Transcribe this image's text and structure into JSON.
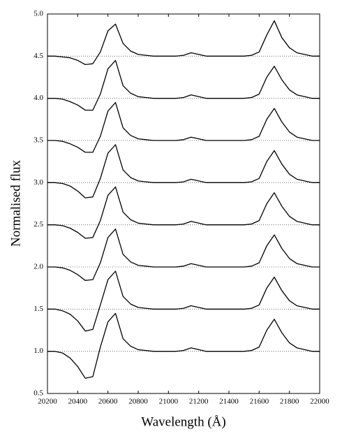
{
  "chart_data": {
    "type": "line",
    "xlabel": "Wavelength (Å)",
    "ylabel": "Normalised flux",
    "x": [
      20200,
      20250,
      20300,
      20350,
      20400,
      20450,
      20500,
      20550,
      20600,
      20650,
      20700,
      20750,
      20800,
      20850,
      20900,
      20950,
      21000,
      21050,
      21100,
      21150,
      21200,
      21250,
      21300,
      21350,
      21400,
      21450,
      21500,
      21550,
      21600,
      21650,
      21700,
      21750,
      21800,
      21850,
      21900,
      21950,
      22000
    ],
    "series": [
      {
        "color": "#000000",
        "values": [
          1,
          1,
          0.98,
          0.92,
          0.82,
          0.68,
          0.7,
          1.05,
          1.35,
          1.45,
          1.15,
          1.06,
          1.02,
          1.01,
          1,
          1,
          1,
          1,
          1.01,
          1.04,
          1.02,
          1,
          1,
          1,
          1,
          1,
          1,
          1.01,
          1.05,
          1.25,
          1.38,
          1.22,
          1.1,
          1.04,
          1.02,
          1,
          1
        ]
      },
      {
        "color": "#000000",
        "values": [
          1.5,
          1.5,
          1.48,
          1.44,
          1.36,
          1.24,
          1.26,
          1.55,
          1.85,
          1.95,
          1.65,
          1.56,
          1.52,
          1.51,
          1.5,
          1.5,
          1.5,
          1.5,
          1.51,
          1.54,
          1.52,
          1.5,
          1.5,
          1.5,
          1.5,
          1.5,
          1.5,
          1.51,
          1.55,
          1.75,
          1.88,
          1.72,
          1.6,
          1.54,
          1.52,
          1.5,
          1.5
        ]
      },
      {
        "color": "#000000",
        "values": [
          2,
          2,
          1.99,
          1.96,
          1.91,
          1.84,
          1.85,
          2.05,
          2.35,
          2.45,
          2.15,
          2.06,
          2.02,
          2.01,
          2,
          2,
          2,
          2,
          2.01,
          2.04,
          2.02,
          2,
          2,
          2,
          2,
          2,
          2,
          2.01,
          2.05,
          2.25,
          2.38,
          2.22,
          2.1,
          2.04,
          2.02,
          2,
          2
        ]
      },
      {
        "color": "#000000",
        "values": [
          2.5,
          2.5,
          2.49,
          2.46,
          2.41,
          2.34,
          2.35,
          2.55,
          2.85,
          2.95,
          2.65,
          2.56,
          2.52,
          2.51,
          2.5,
          2.5,
          2.5,
          2.5,
          2.51,
          2.54,
          2.52,
          2.5,
          2.5,
          2.5,
          2.5,
          2.5,
          2.5,
          2.51,
          2.55,
          2.75,
          2.88,
          2.72,
          2.6,
          2.54,
          2.52,
          2.5,
          2.5
        ]
      },
      {
        "color": "#000000",
        "values": [
          3,
          3,
          2.99,
          2.96,
          2.9,
          2.82,
          2.83,
          3.05,
          3.35,
          3.45,
          3.15,
          3.06,
          3.02,
          3.01,
          3,
          3,
          3,
          3,
          3.01,
          3.04,
          3.02,
          3,
          3,
          3,
          3,
          3,
          3,
          3.01,
          3.05,
          3.25,
          3.38,
          3.22,
          3.1,
          3.04,
          3.02,
          3,
          3
        ]
      },
      {
        "color": "#000000",
        "values": [
          3.5,
          3.5,
          3.49,
          3.46,
          3.42,
          3.36,
          3.36,
          3.55,
          3.85,
          3.95,
          3.65,
          3.56,
          3.52,
          3.51,
          3.5,
          3.5,
          3.5,
          3.5,
          3.51,
          3.54,
          3.52,
          3.5,
          3.5,
          3.5,
          3.5,
          3.5,
          3.5,
          3.51,
          3.55,
          3.75,
          3.88,
          3.72,
          3.6,
          3.54,
          3.52,
          3.5,
          3.5
        ]
      },
      {
        "color": "#000000",
        "values": [
          4,
          4,
          3.99,
          3.96,
          3.92,
          3.86,
          3.86,
          4.05,
          4.35,
          4.45,
          4.15,
          4.06,
          4.02,
          4.01,
          4,
          4,
          4,
          4,
          4.01,
          4.04,
          4.02,
          4,
          4,
          4,
          4,
          4,
          4,
          4.01,
          4.05,
          4.25,
          4.38,
          4.22,
          4.1,
          4.04,
          4.02,
          4,
          4
        ]
      },
      {
        "color": "#000000",
        "values": [
          4.5,
          4.5,
          4.49,
          4.48,
          4.45,
          4.4,
          4.41,
          4.55,
          4.8,
          4.88,
          4.65,
          4.56,
          4.52,
          4.51,
          4.5,
          4.5,
          4.5,
          4.5,
          4.51,
          4.54,
          4.52,
          4.5,
          4.5,
          4.5,
          4.5,
          4.5,
          4.5,
          4.51,
          4.55,
          4.75,
          4.92,
          4.72,
          4.6,
          4.54,
          4.52,
          4.5,
          4.5
        ]
      }
    ],
    "hlines": [
      1,
      1.5,
      2,
      2.5,
      3,
      3.5,
      4,
      4.5
    ],
    "xlim": [
      20200,
      22000
    ],
    "xticks": [
      20200,
      20400,
      20600,
      20800,
      21000,
      21200,
      21400,
      21600,
      21800,
      22000
    ],
    "ylim": [
      0.5,
      5.0
    ],
    "yticks": [
      0.5,
      {
        "value": 1,
        "label": "1.0"
      },
      1.5,
      {
        "value": 2,
        "label": "2.0"
      },
      2.5,
      {
        "value": 3,
        "label": "3.0"
      },
      3.5,
      {
        "value": 4,
        "label": "4.0"
      },
      4.5,
      {
        "value": 5,
        "label": "5.0"
      }
    ]
  }
}
